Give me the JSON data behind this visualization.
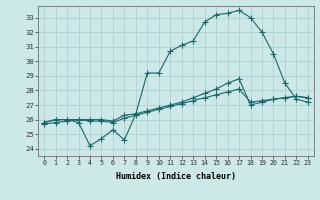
{
  "xlabel": "Humidex (Indice chaleur)",
  "bg_color": "#cce8e8",
  "grid_color": "#a8cccc",
  "line_color": "#1a6868",
  "xlim": [
    -0.5,
    23.5
  ],
  "ylim": [
    23.5,
    33.8
  ],
  "xticks": [
    0,
    1,
    2,
    3,
    4,
    5,
    6,
    7,
    8,
    9,
    10,
    11,
    12,
    13,
    14,
    15,
    16,
    17,
    18,
    19,
    20,
    21,
    22,
    23
  ],
  "yticks": [
    24,
    25,
    26,
    27,
    28,
    29,
    30,
    31,
    32,
    33
  ],
  "line1_x": [
    0,
    1,
    2,
    3,
    4,
    5,
    6,
    7,
    8,
    9,
    10,
    11,
    12,
    13,
    14,
    15,
    16,
    17,
    18,
    19,
    20,
    21,
    22,
    23
  ],
  "line1_y": [
    25.8,
    26.0,
    26.0,
    25.8,
    24.2,
    24.7,
    25.3,
    24.6,
    26.4,
    29.2,
    29.2,
    30.7,
    31.1,
    31.4,
    32.7,
    33.2,
    33.3,
    33.5,
    33.0,
    32.0,
    30.5,
    28.5,
    27.4,
    27.2
  ],
  "line2_x": [
    0,
    1,
    2,
    3,
    4,
    5,
    6,
    7,
    8,
    9,
    10,
    11,
    12,
    13,
    14,
    15,
    16,
    17,
    18,
    19,
    20,
    21,
    22,
    23
  ],
  "line2_y": [
    25.7,
    25.8,
    25.9,
    26.0,
    25.9,
    25.9,
    25.8,
    26.1,
    26.3,
    26.5,
    26.7,
    26.9,
    27.1,
    27.3,
    27.5,
    27.7,
    27.9,
    28.1,
    27.2,
    27.3,
    27.4,
    27.5,
    27.6,
    27.5
  ],
  "line3_x": [
    0,
    1,
    2,
    3,
    4,
    5,
    6,
    7,
    8,
    9,
    10,
    11,
    12,
    13,
    14,
    15,
    16,
    17,
    18,
    19,
    20,
    21,
    22,
    23
  ],
  "line3_y": [
    25.8,
    26.0,
    26.0,
    26.0,
    26.0,
    26.0,
    25.9,
    26.3,
    26.4,
    26.6,
    26.8,
    27.0,
    27.2,
    27.5,
    27.8,
    28.1,
    28.5,
    28.8,
    27.0,
    27.2,
    27.4,
    27.5,
    27.6,
    27.5
  ]
}
